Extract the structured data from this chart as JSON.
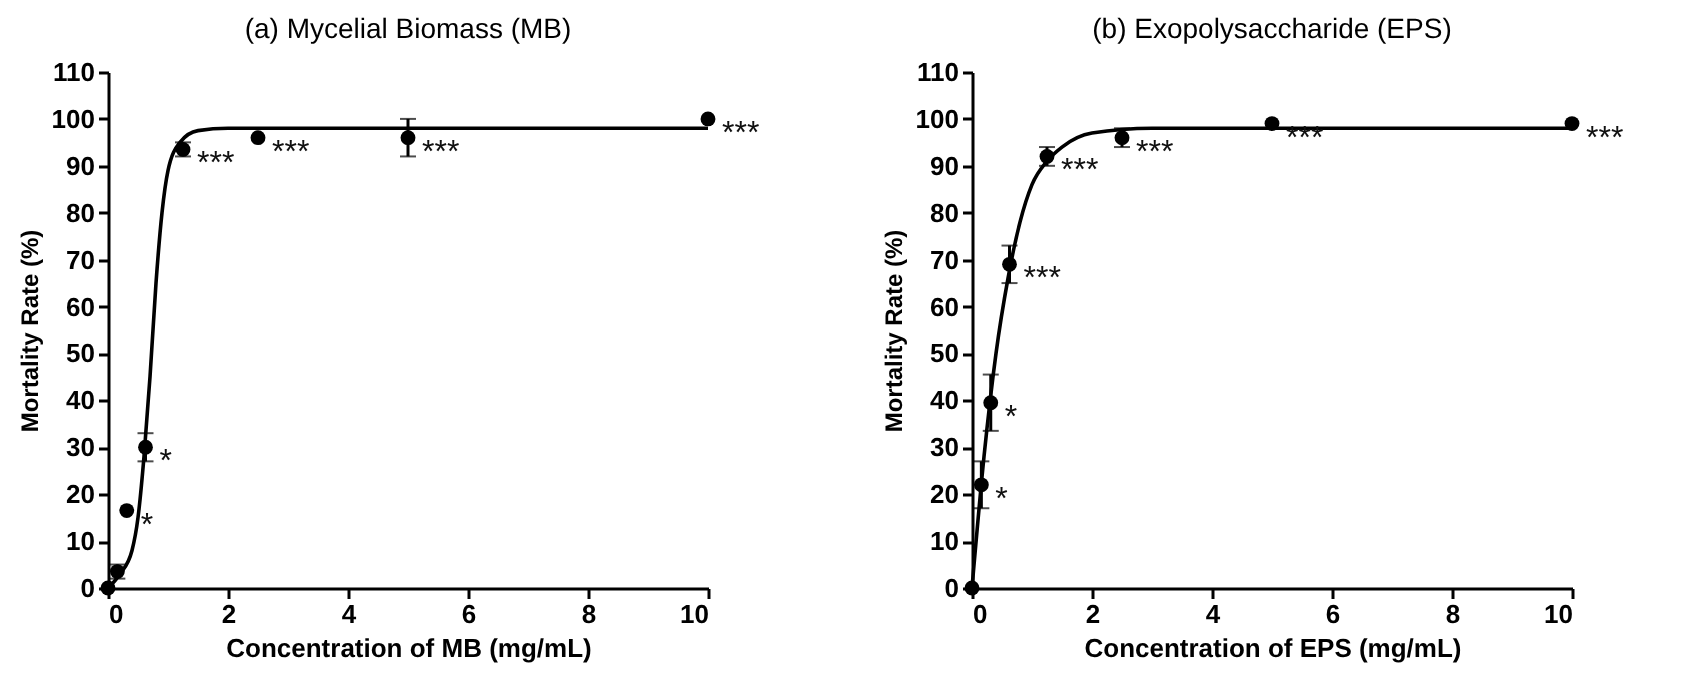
{
  "chart_data": [
    {
      "type": "scatter",
      "title": "(a) Mycelial Biomass (MB)",
      "xlabel": "Concentration of MB (mg/mL)",
      "ylabel": "Mortality Rate (%)",
      "xlim": [
        0,
        10
      ],
      "xticks": [
        0,
        2,
        4,
        6,
        8,
        10
      ],
      "ylim": [
        0,
        110
      ],
      "yticks": [
        0,
        10,
        20,
        30,
        40,
        50,
        60,
        70,
        80,
        90,
        100,
        110
      ],
      "grid": false,
      "series": [
        {
          "marker": "circle",
          "color": "#000000",
          "x": [
            0,
            0.156,
            0.3125,
            0.625,
            1.25,
            2.5,
            5,
            10
          ],
          "values": [
            0,
            3.5,
            16.5,
            30,
            93.5,
            96,
            96,
            100
          ],
          "errors": [
            null,
            1.5,
            null,
            3,
            1.5,
            null,
            4,
            null
          ]
        },
        {
          "type": "line",
          "color": "#000000",
          "x": [
            0,
            0.2,
            0.4,
            0.5,
            0.6,
            0.7,
            0.8,
            0.9,
            1.0,
            1.2,
            1.5,
            2,
            10
          ],
          "values": [
            0,
            3,
            8,
            15,
            28,
            45,
            65,
            80,
            89,
            95,
            97.5,
            98,
            98
          ]
        }
      ],
      "annotations": [
        {
          "text": "*",
          "x": 0.3125,
          "y": 16.5
        },
        {
          "text": "*",
          "x": 0.625,
          "y": 30
        },
        {
          "text": "***",
          "x": 1.25,
          "y": 93.5
        },
        {
          "text": "***",
          "x": 2.5,
          "y": 96
        },
        {
          "text": "***",
          "x": 5,
          "y": 96
        },
        {
          "text": "***",
          "x": 10,
          "y": 100
        }
      ]
    },
    {
      "type": "scatter",
      "title": "(b) Exopolysaccharide (EPS)",
      "xlabel": "Concentration of EPS (mg/mL)",
      "ylabel": "Mortality Rate (%)",
      "xlim": [
        0,
        10
      ],
      "xticks": [
        0,
        2,
        4,
        6,
        8,
        10
      ],
      "ylim": [
        0,
        110
      ],
      "yticks": [
        0,
        10,
        20,
        30,
        40,
        50,
        60,
        70,
        80,
        90,
        100,
        110
      ],
      "grid": false,
      "series": [
        {
          "marker": "circle",
          "color": "#000000",
          "x": [
            0,
            0.156,
            0.3125,
            0.625,
            1.25,
            2.5,
            5,
            10
          ],
          "values": [
            0,
            22,
            39.5,
            69,
            92,
            96,
            99,
            99
          ],
          "errors": [
            null,
            5,
            6,
            4,
            2,
            2,
            null,
            null
          ]
        },
        {
          "type": "line",
          "color": "#000000",
          "x": [
            0,
            0.2,
            0.4,
            0.6,
            0.8,
            1.0,
            1.25,
            1.5,
            2,
            3,
            10
          ],
          "values": [
            0,
            28,
            50,
            66,
            78,
            86,
            91,
            94,
            97,
            98,
            98
          ]
        }
      ],
      "annotations": [
        {
          "text": "*",
          "x": 0.156,
          "y": 22
        },
        {
          "text": "*",
          "x": 0.3125,
          "y": 39.5
        },
        {
          "text": "***",
          "x": 0.625,
          "y": 69
        },
        {
          "text": "***",
          "x": 1.25,
          "y": 92
        },
        {
          "text": "***",
          "x": 2.5,
          "y": 96
        },
        {
          "text": "***",
          "x": 5,
          "y": 99
        },
        {
          "text": "***",
          "x": 10,
          "y": 99
        }
      ]
    }
  ]
}
